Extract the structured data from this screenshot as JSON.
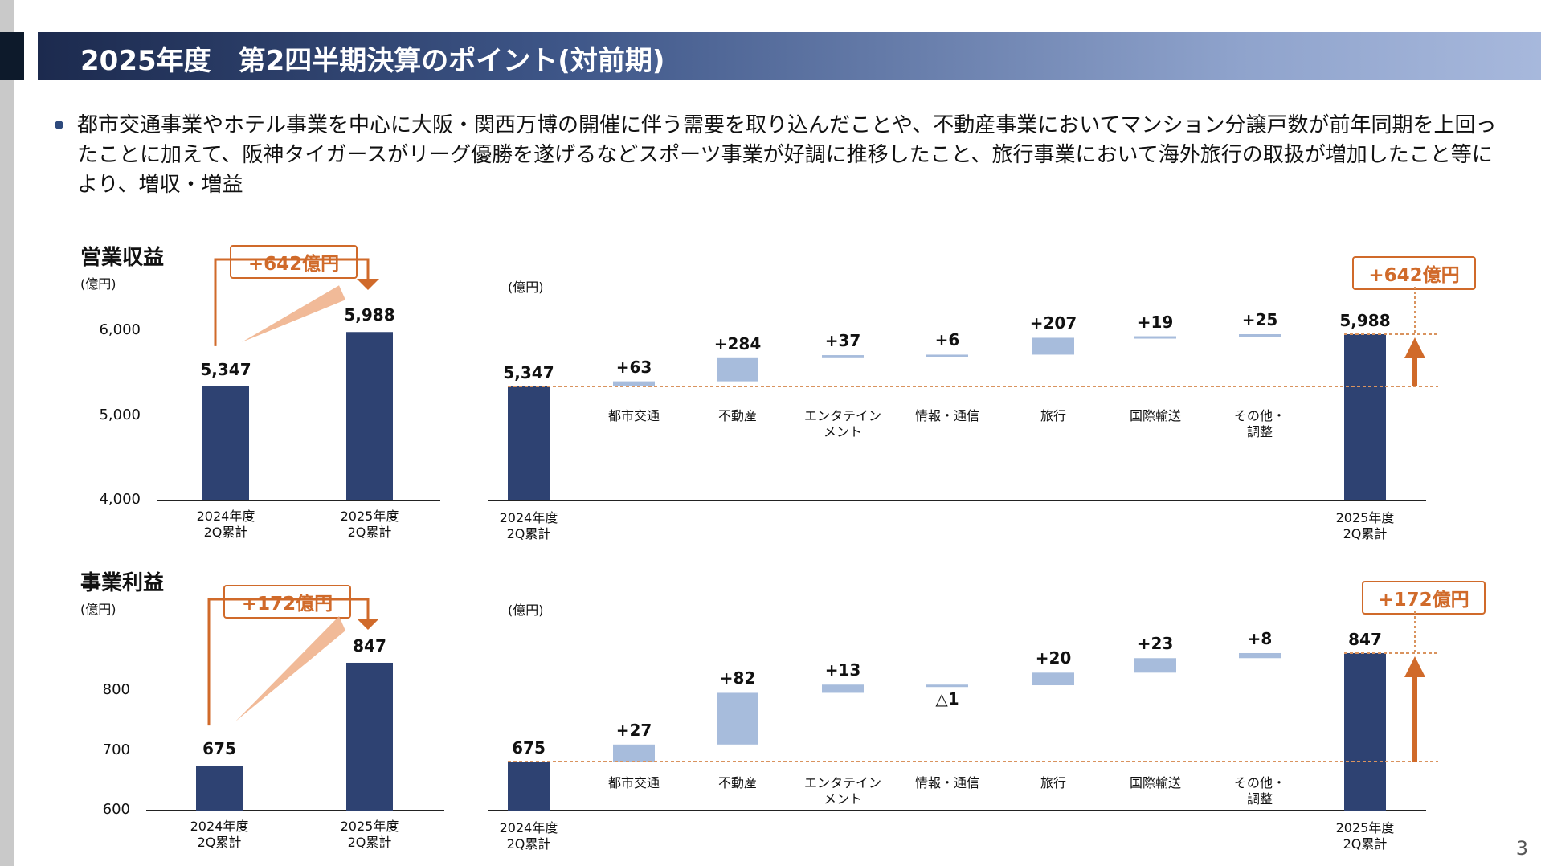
{
  "header": {
    "title": "2025年度　第2四半期決算のポイント(対前期)"
  },
  "summary": "都市交通事業やホテル事業を中心に大阪・関西万博の開催に伴う需要を取り込んだことや、不動産事業においてマンション分譲戸数が前年同期を上回ったことに加えて、阪神タイガースがリーグ優勝を遂げるなどスポーツ事業が好調に推移したこと、旅行事業において海外旅行の取扱が増加したこと等により、増収・増益",
  "page_number": "3",
  "colors": {
    "bar": "#2e4272",
    "increment": "#a7bcdc",
    "accent": "#d06a2a"
  },
  "chart_data": [
    {
      "type": "bar",
      "title": "営業収益",
      "unit": "(億円)",
      "categories": [
        "2024年度\n2Q累計",
        "2025年度\n2Q累計"
      ],
      "values": [
        5347,
        5988
      ],
      "labels": [
        "5,347",
        "5,988"
      ],
      "ylim": [
        4000,
        6300
      ],
      "yticks": [
        "4,000",
        "5,000",
        "6,000"
      ],
      "ytick_values": [
        4000,
        5000,
        6000
      ],
      "annotation": "+642億円"
    },
    {
      "type": "waterfall",
      "unit": "(億円)",
      "start": {
        "category": "2024年度\n2Q累計",
        "value": 5347,
        "label": "5,347"
      },
      "end": {
        "category": "2025年度\n2Q累計",
        "value": 5988,
        "label": "5,988"
      },
      "steps": [
        {
          "category": "都市交通",
          "value": 63,
          "label": "+63"
        },
        {
          "category": "不動産",
          "value": 284,
          "label": "+284"
        },
        {
          "category": "エンタテイン\nメント",
          "value": 37,
          "label": "+37"
        },
        {
          "category": "情報・通信",
          "value": 6,
          "label": "+6"
        },
        {
          "category": "旅行",
          "value": 207,
          "label": "+207"
        },
        {
          "category": "国際輸送",
          "value": 19,
          "label": "+19"
        },
        {
          "category": "その他・\n調整",
          "value": 25,
          "label": "+25"
        }
      ],
      "annotation": "+642億円"
    },
    {
      "type": "bar",
      "title": "事業利益",
      "unit": "(億円)",
      "categories": [
        "2024年度\n2Q累計",
        "2025年度\n2Q累計"
      ],
      "values": [
        675,
        847
      ],
      "labels": [
        "675",
        "847"
      ],
      "ylim": [
        600,
        880
      ],
      "yticks": [
        "600",
        "700",
        "800"
      ],
      "ytick_values": [
        600,
        700,
        800
      ],
      "annotation": "+172億円"
    },
    {
      "type": "waterfall",
      "unit": "(億円)",
      "start": {
        "category": "2024年度\n2Q累計",
        "value": 675,
        "label": "675"
      },
      "end": {
        "category": "2025年度\n2Q累計",
        "value": 847,
        "label": "847"
      },
      "steps": [
        {
          "category": "都市交通",
          "value": 27,
          "label": "+27"
        },
        {
          "category": "不動産",
          "value": 82,
          "label": "+82"
        },
        {
          "category": "エンタテイン\nメント",
          "value": 13,
          "label": "+13"
        },
        {
          "category": "情報・通信",
          "value": -1,
          "label": "△1"
        },
        {
          "category": "旅行",
          "value": 20,
          "label": "+20"
        },
        {
          "category": "国際輸送",
          "value": 23,
          "label": "+23"
        },
        {
          "category": "その他・\n調整",
          "value": 8,
          "label": "+8"
        }
      ],
      "annotation": "+172億円"
    }
  ]
}
